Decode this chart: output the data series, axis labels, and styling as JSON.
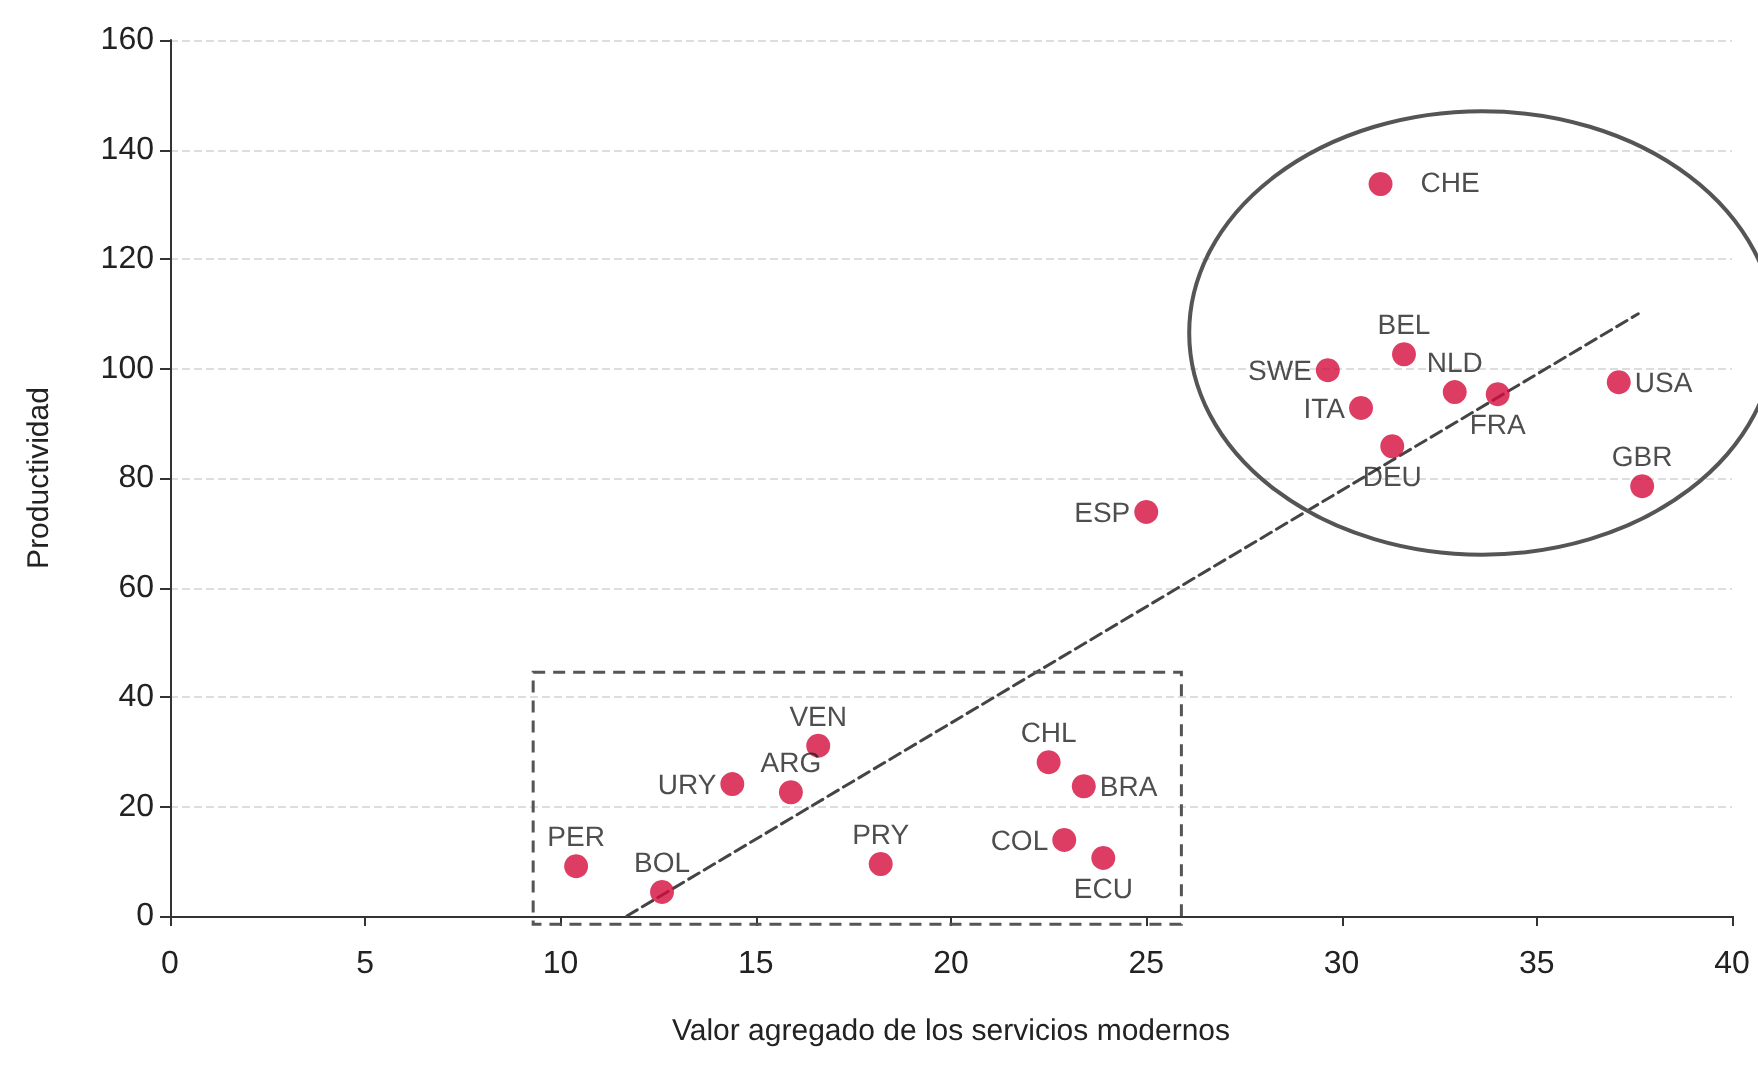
{
  "chart_data": {
    "type": "scatter",
    "xlabel": "Valor agregado de los servicios modernos",
    "ylabel": "Productividad",
    "xlim": [
      0,
      40
    ],
    "xticks": [
      0,
      5,
      10,
      15,
      20,
      25,
      30,
      35,
      40
    ],
    "ylim": [
      0,
      160
    ],
    "yticks": [
      0,
      20,
      40,
      60,
      80,
      100,
      120,
      140,
      160
    ],
    "grid": "y",
    "marker": "circle",
    "series": [
      {
        "color": "#d50b3c",
        "x": [
          31.0,
          29.65,
          31.6,
          32.9,
          30.5,
          31.3,
          34.0,
          37.1,
          37.7,
          25.0,
          16.6,
          14.4,
          15.9,
          22.5,
          23.4,
          10.4,
          12.6,
          18.2,
          22.9,
          23.9
        ],
        "values": [
          133.7,
          99.7,
          102.6,
          95.7,
          92.8,
          85.8,
          95.3,
          97.5,
          78.5,
          73.8,
          31.1,
          24.1,
          22.6,
          28.1,
          23.7,
          9.1,
          4.4,
          9.5,
          13.9,
          10.6
        ]
      },
      {
        "type": "line",
        "color": "#444444",
        "line_style": "dashed",
        "marker": "none",
        "x": [
          11.7,
          37.6
        ],
        "values": [
          0,
          110
        ]
      }
    ],
    "annotations": [
      {
        "text": "CHE",
        "x": 31.0,
        "y": 133.7
      },
      {
        "text": "SWE",
        "x": 29.65,
        "y": 99.7
      },
      {
        "text": "BEL",
        "x": 31.6,
        "y": 102.6
      },
      {
        "text": "NLD",
        "x": 32.9,
        "y": 95.7
      },
      {
        "text": "ITA",
        "x": 30.5,
        "y": 92.8
      },
      {
        "text": "DEU",
        "x": 31.3,
        "y": 85.8
      },
      {
        "text": "FRA",
        "x": 34.0,
        "y": 95.3
      },
      {
        "text": "USA",
        "x": 37.1,
        "y": 97.5
      },
      {
        "text": "GBR",
        "x": 37.7,
        "y": 78.5
      },
      {
        "text": "ESP",
        "x": 25.0,
        "y": 73.8
      },
      {
        "text": "VEN",
        "x": 16.6,
        "y": 31.1
      },
      {
        "text": "URY",
        "x": 14.4,
        "y": 24.1
      },
      {
        "text": "ARG",
        "x": 15.9,
        "y": 22.6
      },
      {
        "text": "CHL",
        "x": 22.5,
        "y": 28.1
      },
      {
        "text": "BRA",
        "x": 23.4,
        "y": 23.7
      },
      {
        "text": "PER",
        "x": 10.4,
        "y": 9.1
      },
      {
        "text": "BOL",
        "x": 12.6,
        "y": 4.4
      },
      {
        "text": "PRY",
        "x": 18.2,
        "y": 9.5
      },
      {
        "text": "COL",
        "x": 22.9,
        "y": 13.9
      },
      {
        "text": "ECU",
        "x": 23.9,
        "y": 10.6
      }
    ]
  }
}
